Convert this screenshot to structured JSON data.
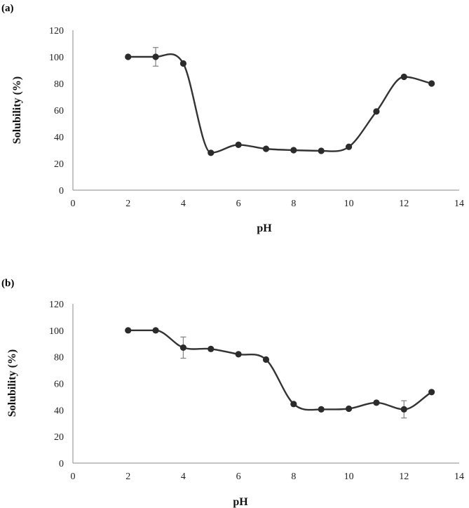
{
  "chart_data": [
    {
      "type": "line",
      "panel_label": "(a)",
      "xlabel": "pH",
      "ylabel": "Solubility (%)",
      "xlim": [
        0,
        14
      ],
      "ylim": [
        0,
        120
      ],
      "xticks": [
        0,
        2,
        4,
        6,
        8,
        10,
        12,
        14
      ],
      "yticks": [
        0,
        20,
        40,
        60,
        80,
        100,
        120
      ],
      "grid": false,
      "smooth": true,
      "line_color": "#333333",
      "errorbar_color": "#888888",
      "series": [
        {
          "x": [
            2,
            3,
            4,
            5,
            6,
            7,
            8,
            9,
            10,
            11,
            12,
            13
          ],
          "y": [
            100,
            100,
            95,
            28,
            34,
            31,
            30,
            29.5,
            32.5,
            59,
            85,
            80
          ],
          "error": [
            0,
            7,
            0,
            0,
            0,
            0,
            0,
            0,
            0,
            0,
            0,
            0
          ]
        }
      ]
    },
    {
      "type": "line",
      "panel_label": "(b)",
      "xlabel": "pH",
      "ylabel": "Solubility (%)",
      "xlim": [
        0,
        14
      ],
      "ylim": [
        0,
        120
      ],
      "xticks": [
        0,
        2,
        4,
        6,
        8,
        10,
        12,
        14
      ],
      "yticks": [
        0,
        20,
        40,
        60,
        80,
        100,
        120
      ],
      "grid": false,
      "smooth": true,
      "line_color": "#333333",
      "errorbar_color": "#888888",
      "series": [
        {
          "x": [
            2,
            3,
            4,
            5,
            6,
            7,
            8,
            9,
            10,
            11,
            12,
            13
          ],
          "y": [
            100,
            100,
            87,
            86,
            82,
            78,
            44.5,
            40.5,
            41,
            45.5,
            40.5,
            53.5
          ],
          "error": [
            0,
            0,
            8,
            0,
            0,
            0,
            0,
            0,
            0,
            0,
            6.5,
            0
          ]
        }
      ]
    }
  ]
}
